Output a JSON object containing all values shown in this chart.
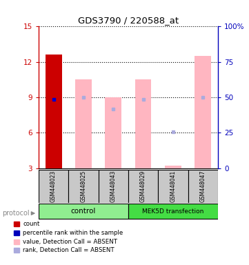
{
  "title": "GDS3790 / 220588_at",
  "samples": [
    "GSM448023",
    "GSM448025",
    "GSM448043",
    "GSM448029",
    "GSM448041",
    "GSM448047"
  ],
  "groups": [
    "control",
    "control",
    "control",
    "MEK5D transfection",
    "MEK5D transfection",
    "MEK5D transfection"
  ],
  "ylim_left": [
    3,
    15
  ],
  "ylim_right": [
    0,
    100
  ],
  "yticks_left": [
    3,
    6,
    9,
    12,
    15
  ],
  "yticks_right": [
    0,
    25,
    50,
    75,
    100
  ],
  "bar_values": [
    12.6,
    10.5,
    9.0,
    10.5,
    3.2,
    12.5
  ],
  "bar_colors": [
    "#CC0000",
    "#FFB6C1",
    "#FFB6C1",
    "#FFB6C1",
    "#FFB6C1",
    "#FFB6C1"
  ],
  "rank_marker_val": 8.85,
  "rank_marker_color": "#0000CC",
  "absent_rank_values": [
    null,
    9.0,
    8.0,
    8.85,
    6.1,
    9.0
  ],
  "absent_rank_color": "#AAAADD",
  "background_color": "#FFFFFF",
  "left_axis_color": "#CC0000",
  "right_axis_color": "#0000BB",
  "legend_items": [
    {
      "label": "count",
      "color": "#CC0000"
    },
    {
      "label": "percentile rank within the sample",
      "color": "#0000BB"
    },
    {
      "label": "value, Detection Call = ABSENT",
      "color": "#FFB6C1"
    },
    {
      "label": "rank, Detection Call = ABSENT",
      "color": "#AAAADD"
    }
  ],
  "protocol_label": "protocol",
  "sample_box_color": "#C8C8C8",
  "control_color": "#90EE90",
  "mek5d_color": "#44DD44"
}
